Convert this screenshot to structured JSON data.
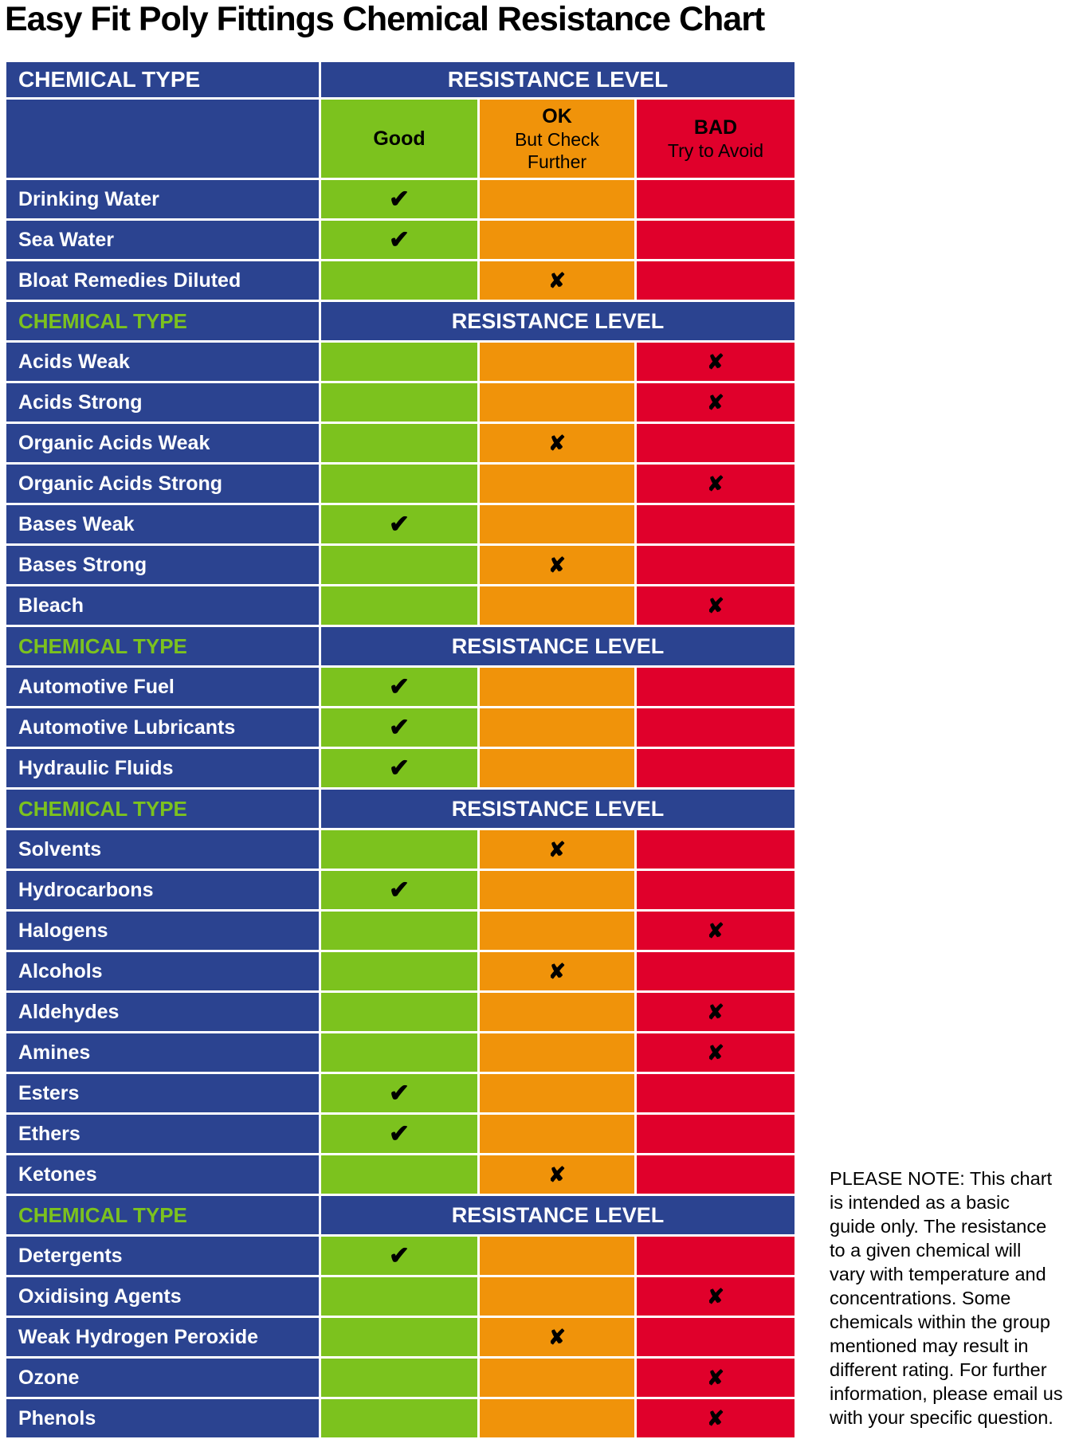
{
  "title": "Easy Fit Poly Fittings Chemical Resistance Chart",
  "colors": {
    "blue": "#2b4390",
    "good_green": "#7cc21e",
    "ok_orange": "#f0930a",
    "bad_red": "#e0002b",
    "section_label_green": "#7cc21e",
    "header_text": "#ffffff",
    "mark_black": "#000000"
  },
  "table": {
    "chemical_type_header": "CHEMICAL TYPE",
    "resistance_level_header": "RESISTANCE LEVEL",
    "rating_columns": [
      {
        "id": "good",
        "label": "Good",
        "sublabel": ""
      },
      {
        "id": "ok",
        "label": "OK",
        "sublabel": "But Check\nFurther"
      },
      {
        "id": "bad",
        "label": "BAD",
        "sublabel": "Try to Avoid"
      }
    ],
    "marks": {
      "good": "✔",
      "fail": "✘"
    },
    "groups": [
      {
        "rows": [
          {
            "label": "Drinking Water",
            "rating": "good"
          },
          {
            "label": "Sea Water",
            "rating": "good"
          },
          {
            "label": "Bloat Remedies Diluted",
            "rating": "ok"
          }
        ]
      },
      {
        "rows": [
          {
            "label": "Acids Weak",
            "rating": "bad"
          },
          {
            "label": "Acids Strong",
            "rating": "bad"
          },
          {
            "label": "Organic Acids Weak",
            "rating": "ok"
          },
          {
            "label": "Organic Acids Strong",
            "rating": "bad"
          },
          {
            "label": "Bases Weak",
            "rating": "good"
          },
          {
            "label": "Bases Strong",
            "rating": "ok"
          },
          {
            "label": "Bleach",
            "rating": "bad"
          }
        ]
      },
      {
        "rows": [
          {
            "label": "Automotive Fuel",
            "rating": "good"
          },
          {
            "label": "Automotive Lubricants",
            "rating": "good"
          },
          {
            "label": "Hydraulic Fluids",
            "rating": "good"
          }
        ]
      },
      {
        "rows": [
          {
            "label": "Solvents",
            "rating": "ok"
          },
          {
            "label": "Hydrocarbons",
            "rating": "good"
          },
          {
            "label": "Halogens",
            "rating": "bad"
          },
          {
            "label": "Alcohols",
            "rating": "ok"
          },
          {
            "label": "Aldehydes",
            "rating": "bad"
          },
          {
            "label": "Amines",
            "rating": "bad"
          },
          {
            "label": "Esters",
            "rating": "good"
          },
          {
            "label": "Ethers",
            "rating": "good"
          },
          {
            "label": "Ketones",
            "rating": "ok"
          }
        ]
      },
      {
        "rows": [
          {
            "label": "Detergents",
            "rating": "good"
          },
          {
            "label": "Oxidising Agents",
            "rating": "bad"
          },
          {
            "label": "Weak Hydrogen Peroxide",
            "rating": "ok"
          },
          {
            "label": "Ozone",
            "rating": "bad"
          },
          {
            "label": "Phenols",
            "rating": "bad"
          }
        ]
      }
    ]
  },
  "note": {
    "text": "PLEASE NOTE: This chart\nis intended as a basic\nguide only. The resistance\nto a given chemical will\nvary with temperature and\nconcentrations. Some\nchemicals within the group\nmentioned may result in\ndifferent rating. For further\ninformation, please email us\nwith your specific question."
  },
  "chart_data": {
    "type": "table",
    "title": "Easy Fit Poly Fittings Chemical Resistance Chart",
    "columns": [
      "Good",
      "OK But Check Further",
      "BAD Try to Avoid"
    ],
    "rows": [
      {
        "chemical": "Drinking Water",
        "rating": "Good"
      },
      {
        "chemical": "Sea Water",
        "rating": "Good"
      },
      {
        "chemical": "Bloat Remedies Diluted",
        "rating": "OK But Check Further"
      },
      {
        "chemical": "Acids Weak",
        "rating": "BAD Try to Avoid"
      },
      {
        "chemical": "Acids Strong",
        "rating": "BAD Try to Avoid"
      },
      {
        "chemical": "Organic Acids Weak",
        "rating": "OK But Check Further"
      },
      {
        "chemical": "Organic Acids Strong",
        "rating": "BAD Try to Avoid"
      },
      {
        "chemical": "Bases Weak",
        "rating": "Good"
      },
      {
        "chemical": "Bases Strong",
        "rating": "OK But Check Further"
      },
      {
        "chemical": "Bleach",
        "rating": "BAD Try to Avoid"
      },
      {
        "chemical": "Automotive Fuel",
        "rating": "Good"
      },
      {
        "chemical": "Automotive Lubricants",
        "rating": "Good"
      },
      {
        "chemical": "Hydraulic Fluids",
        "rating": "Good"
      },
      {
        "chemical": "Solvents",
        "rating": "OK But Check Further"
      },
      {
        "chemical": "Hydrocarbons",
        "rating": "Good"
      },
      {
        "chemical": "Halogens",
        "rating": "BAD Try to Avoid"
      },
      {
        "chemical": "Alcohols",
        "rating": "OK But Check Further"
      },
      {
        "chemical": "Aldehydes",
        "rating": "BAD Try to Avoid"
      },
      {
        "chemical": "Amines",
        "rating": "BAD Try to Avoid"
      },
      {
        "chemical": "Esters",
        "rating": "Good"
      },
      {
        "chemical": "Ethers",
        "rating": "Good"
      },
      {
        "chemical": "Ketones",
        "rating": "OK But Check Further"
      },
      {
        "chemical": "Detergents",
        "rating": "Good"
      },
      {
        "chemical": "Oxidising Agents",
        "rating": "BAD Try to Avoid"
      },
      {
        "chemical": "Weak Hydrogen Peroxide",
        "rating": "OK But Check Further"
      },
      {
        "chemical": "Ozone",
        "rating": "BAD Try to Avoid"
      },
      {
        "chemical": "Phenols",
        "rating": "BAD Try to Avoid"
      }
    ]
  }
}
